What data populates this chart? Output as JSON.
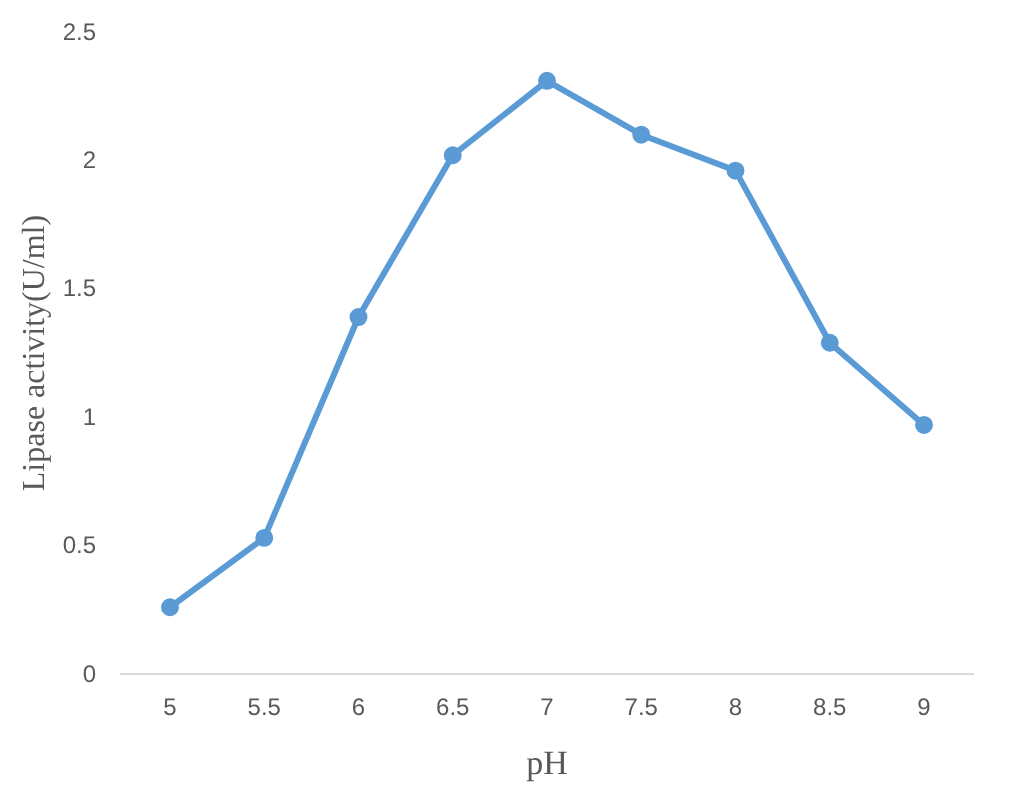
{
  "chart_data": {
    "type": "line",
    "xlabel": "pH",
    "ylabel": "Lipase activity(U/ml)",
    "categories": [
      "5",
      "5.5",
      "6",
      "6.5",
      "7",
      "7.5",
      "8",
      "8.5",
      "9"
    ],
    "series": [
      {
        "color": "#5b9bd5",
        "values": [
          0.26,
          0.53,
          1.39,
          2.02,
          2.31,
          2.1,
          1.96,
          1.29,
          0.97
        ]
      }
    ],
    "ylim": [
      0,
      2.5
    ],
    "yticks": [
      0,
      0.5,
      1,
      1.5,
      2,
      2.5
    ],
    "grid": false,
    "marker": "circle",
    "line_style": "solid"
  }
}
